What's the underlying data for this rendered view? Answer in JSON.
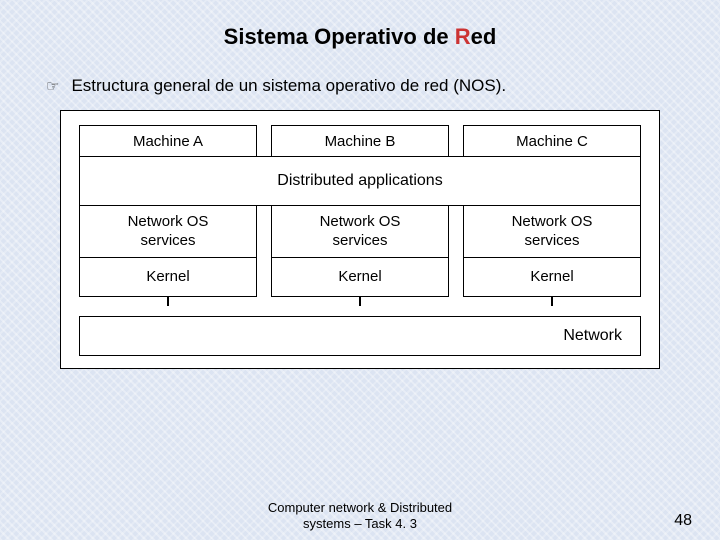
{
  "title_plain": "Sistema Operativo de ",
  "title_accent": "R",
  "title_tail": "ed",
  "title_color_accent": "#cc3333",
  "bullet_icon": "☞",
  "bullet_text": "Estructura general de un sistema operativo de red (NOS).",
  "diagram": {
    "type": "flowchart",
    "background": "#ffffff",
    "border_color": "#000000",
    "font_size": 15,
    "machines": [
      "Machine A",
      "Machine B",
      "Machine C"
    ],
    "distributed_label": "Distributed applications",
    "net_os_label": "Network OS\nservices",
    "kernel_label": "Kernel",
    "network_label": "Network"
  },
  "footer_line1": "Computer network & Distributed",
  "footer_line2": "systems – Task 4. 3",
  "page_number": "48",
  "colors": {
    "slide_bg": "#dce4f2",
    "text": "#000000"
  }
}
